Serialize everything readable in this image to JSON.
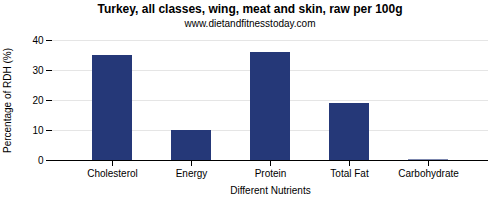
{
  "chart_data": {
    "type": "bar",
    "title": "Turkey, all classes, wing, meat and skin, raw per 100g",
    "subtitle": "www.dietandfitnesstoday.com",
    "xlabel": "Different Nutrients",
    "ylabel": "Percentage of RDH (%)",
    "categories": [
      "Cholesterol",
      "Energy",
      "Protein",
      "Total Fat",
      "Carbohydrate"
    ],
    "values": [
      35,
      10,
      36,
      19,
      0.2
    ],
    "color": "#253878",
    "ylim": [
      0,
      40
    ],
    "yticks": [
      0,
      10,
      20,
      30,
      40
    ],
    "grid": true
  }
}
